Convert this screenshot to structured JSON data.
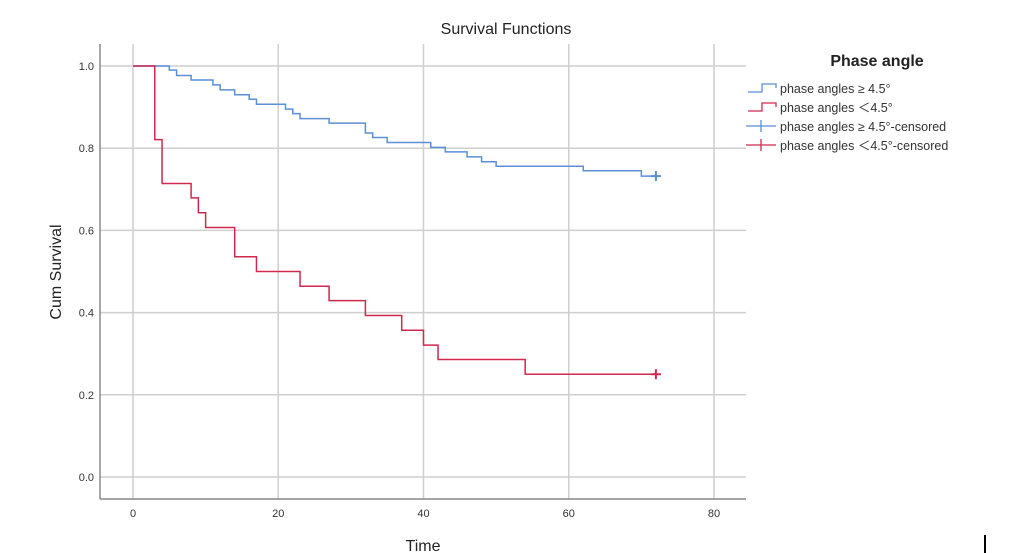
{
  "chart_data": {
    "type": "line",
    "step": true,
    "title": "Survival Functions",
    "xlabel": "Time",
    "ylabel": "Cum Survival",
    "xlim": [
      0,
      80
    ],
    "ylim": [
      0,
      1.0
    ],
    "xticks": [
      0,
      20,
      40,
      60,
      80
    ],
    "xtick_labels": [
      "0",
      "20",
      "40",
      "60",
      "80"
    ],
    "yticks": [
      0,
      0.2,
      0.4,
      0.6,
      0.8,
      1.0
    ],
    "ytick_labels": [
      "0.0",
      "0.2",
      "0.4",
      "0.6",
      "0.8",
      "1.0"
    ],
    "grid": true,
    "legend": {
      "title": "Phase angle",
      "placement": "right",
      "entries": [
        "phase angles ≥ 4.5°",
        "phase angles ＜4.5°",
        "phase angles ≥ 4.5°-censored",
        "phase angles ＜4.5°-censored"
      ]
    },
    "series": [
      {
        "name": "phase angles ≥ 4.5°",
        "color": "#5b8fd6",
        "x": [
          0,
          5,
          6,
          8,
          11,
          12,
          14,
          16,
          17,
          21,
          22,
          23,
          27,
          32,
          33,
          35,
          41,
          43,
          46,
          48,
          50,
          62,
          70,
          72
        ],
        "y": [
          1.0,
          0.99,
          0.977,
          0.966,
          0.954,
          0.942,
          0.93,
          0.919,
          0.907,
          0.895,
          0.884,
          0.872,
          0.861,
          0.837,
          0.826,
          0.814,
          0.802,
          0.791,
          0.779,
          0.767,
          0.756,
          0.745,
          0.732,
          0.732
        ],
        "censored": [
          {
            "x": 72,
            "y": 0.732
          }
        ]
      },
      {
        "name": "phase angles ＜4.5°",
        "color": "#d0284e",
        "x": [
          0,
          3,
          4,
          8,
          9,
          10,
          14,
          17,
          23,
          27,
          32,
          37,
          40,
          42,
          54,
          72
        ],
        "y": [
          1.0,
          0.821,
          0.714,
          0.679,
          0.643,
          0.607,
          0.536,
          0.5,
          0.464,
          0.429,
          0.393,
          0.357,
          0.321,
          0.286,
          0.25,
          0.25
        ],
        "censored": [
          {
            "x": 72,
            "y": 0.25
          }
        ]
      }
    ]
  }
}
